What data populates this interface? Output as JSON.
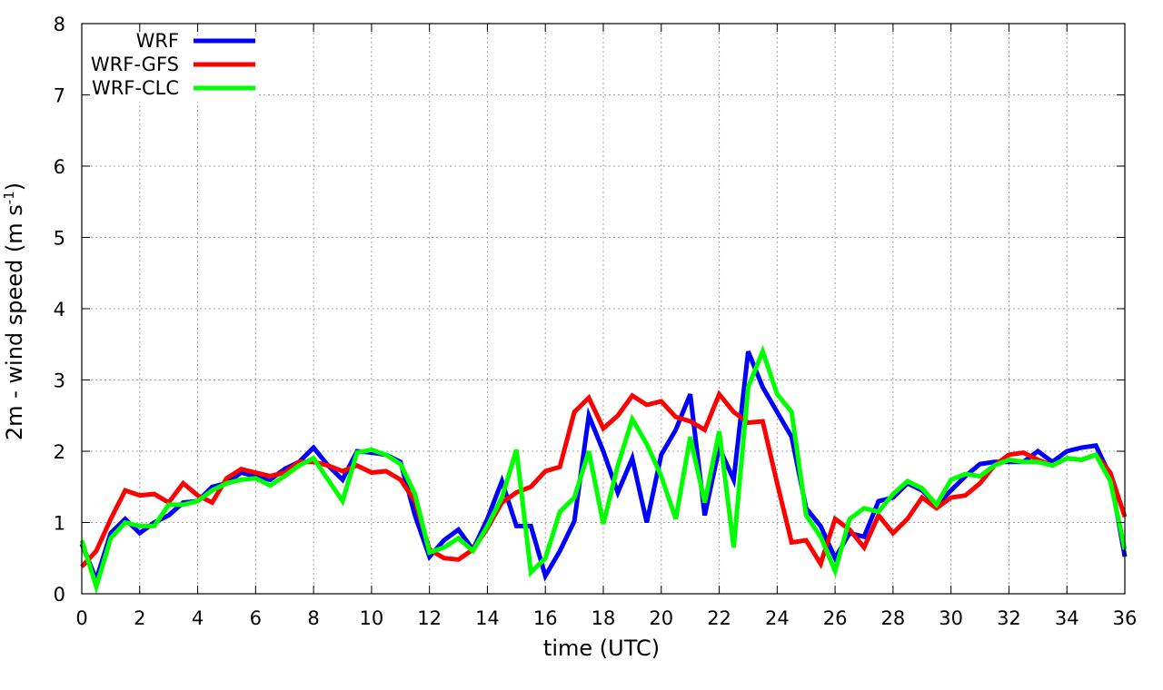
{
  "chart_data": {
    "type": "line",
    "title": "",
    "xlabel": "time (UTC)",
    "ylabel_main": "2m - wind speed  (m s",
    "ylabel_sup": "-1",
    "ylabel_close": ")",
    "xlim": [
      0,
      36
    ],
    "ylim": [
      0,
      8
    ],
    "xticks": [
      0,
      2,
      4,
      6,
      8,
      10,
      12,
      14,
      16,
      18,
      20,
      22,
      24,
      26,
      28,
      30,
      32,
      34,
      36
    ],
    "yticks": [
      0,
      1,
      2,
      3,
      4,
      5,
      6,
      7,
      8
    ],
    "grid": true,
    "legend_position": "top-left",
    "x": [
      0,
      0.5,
      1,
      1.5,
      2,
      2.5,
      3,
      3.5,
      4,
      4.5,
      5,
      5.5,
      6,
      6.5,
      7,
      7.5,
      8,
      8.5,
      9,
      9.5,
      10,
      10.5,
      11,
      11.5,
      12,
      12.5,
      13,
      13.5,
      14,
      14.5,
      15,
      15.5,
      16,
      16.5,
      17,
      17.5,
      18,
      18.5,
      19,
      19.5,
      20,
      20.5,
      21,
      21.5,
      22,
      22.5,
      23,
      23.5,
      24,
      24.5,
      25,
      25.5,
      26,
      26.5,
      27,
      27.5,
      28,
      28.5,
      29,
      29.5,
      30,
      30.5,
      31,
      31.5,
      32,
      32.5,
      33,
      33.5,
      34,
      34.5,
      35,
      35.5,
      36
    ],
    "series": [
      {
        "name": "WRF",
        "color": "#0000ff",
        "values": [
          0.7,
          0.2,
          0.85,
          1.05,
          0.85,
          1.0,
          1.1,
          1.28,
          1.3,
          1.5,
          1.55,
          1.7,
          1.65,
          1.6,
          1.75,
          1.85,
          2.05,
          1.8,
          1.6,
          2.0,
          1.98,
          1.95,
          1.85,
          1.1,
          0.52,
          0.75,
          0.9,
          0.62,
          1.05,
          1.58,
          0.95,
          0.95,
          0.25,
          0.6,
          1.02,
          2.5,
          2.0,
          1.42,
          1.9,
          1.0,
          1.95,
          2.3,
          2.8,
          1.1,
          2.05,
          1.6,
          3.4,
          2.9,
          2.55,
          2.2,
          1.2,
          0.95,
          0.5,
          0.85,
          0.8,
          1.3,
          1.35,
          1.55,
          1.45,
          1.25,
          1.45,
          1.65,
          1.82,
          1.85,
          1.85,
          1.85,
          2.0,
          1.85,
          2.0,
          2.05,
          2.08,
          1.65,
          0.52
        ]
      },
      {
        "name": "WRF-GFS",
        "color": "#ff0000",
        "values": [
          0.38,
          0.6,
          1.05,
          1.45,
          1.38,
          1.4,
          1.28,
          1.55,
          1.38,
          1.28,
          1.62,
          1.75,
          1.7,
          1.65,
          1.7,
          1.85,
          1.85,
          1.8,
          1.72,
          1.8,
          1.7,
          1.72,
          1.6,
          1.3,
          0.62,
          0.5,
          0.48,
          0.62,
          0.92,
          1.28,
          1.42,
          1.5,
          1.72,
          1.78,
          2.55,
          2.75,
          2.32,
          2.5,
          2.78,
          2.65,
          2.7,
          2.48,
          2.42,
          2.3,
          2.8,
          2.55,
          2.4,
          2.42,
          1.55,
          0.72,
          0.75,
          0.42,
          1.05,
          0.9,
          0.65,
          1.1,
          0.85,
          1.05,
          1.35,
          1.2,
          1.35,
          1.38,
          1.55,
          1.8,
          1.95,
          1.98,
          1.88,
          1.8,
          1.9,
          1.88,
          1.95,
          1.7,
          1.08
        ]
      },
      {
        "name": "WRF-CLC",
        "color": "#00ff00",
        "values": [
          0.75,
          0.1,
          0.78,
          1.0,
          0.95,
          0.95,
          1.25,
          1.25,
          1.3,
          1.45,
          1.55,
          1.6,
          1.62,
          1.52,
          1.65,
          1.8,
          1.9,
          1.6,
          1.3,
          1.98,
          2.02,
          1.95,
          1.82,
          1.4,
          0.58,
          0.65,
          0.78,
          0.6,
          0.95,
          1.35,
          2.02,
          0.3,
          0.5,
          1.15,
          1.35,
          2.0,
          0.98,
          1.8,
          2.45,
          2.1,
          1.65,
          1.05,
          2.2,
          1.28,
          2.28,
          0.65,
          2.9,
          3.4,
          2.8,
          2.55,
          1.1,
          0.8,
          0.32,
          1.05,
          1.2,
          1.15,
          1.4,
          1.58,
          1.48,
          1.25,
          1.6,
          1.68,
          1.65,
          1.8,
          1.88,
          1.85,
          1.85,
          1.8,
          1.9,
          1.88,
          1.95,
          1.58,
          0.62
        ]
      }
    ]
  }
}
